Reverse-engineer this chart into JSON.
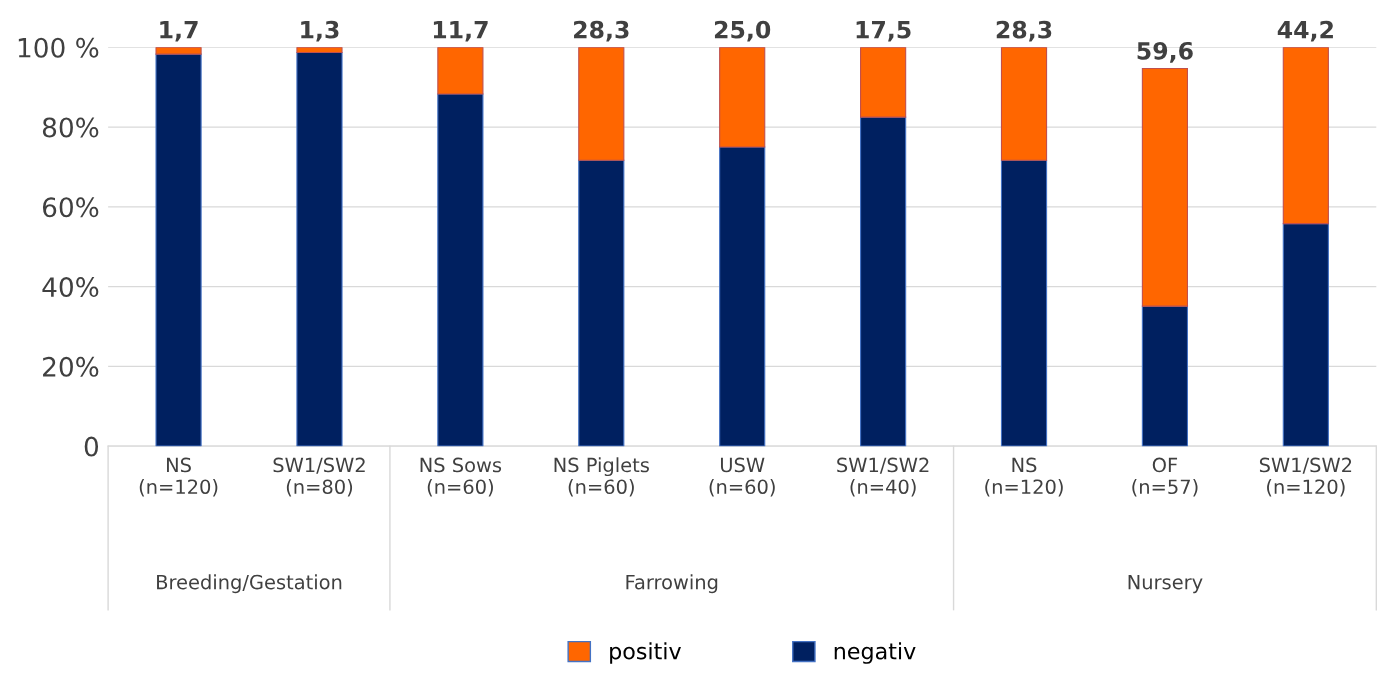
{
  "chart_data": {
    "type": "bar",
    "stacked": true,
    "categories": [
      "NS\n(n=120)",
      "SW1/SW2\n(n=80)",
      "NS Sows\n(n=60)",
      "NS Piglets\n(n=60)",
      "USW\n(n=60)",
      "SW1/SW2\n(n=40)",
      "NS\n(n=120)",
      "OF\n(n=57)",
      "SW1/SW2\n(n=120)"
    ],
    "series": [
      {
        "name": "negativ",
        "color": "#002060",
        "values": [
          98.3,
          98.7,
          88.3,
          71.7,
          75.0,
          82.5,
          71.7,
          35.1,
          55.8
        ]
      },
      {
        "name": "positiv",
        "color": "#ff6600",
        "values": [
          1.7,
          1.3,
          11.7,
          28.3,
          25.0,
          17.5,
          28.3,
          59.6,
          44.2
        ],
        "value_labels": [
          "1,7",
          "1,3",
          "11,7",
          "28,3",
          "25,0",
          "17,5",
          "28,3",
          "59,6",
          "44,2"
        ]
      }
    ],
    "ylim": [
      0,
      100
    ],
    "yticks": [
      0,
      {
        "value": 20,
        "label": "20%"
      },
      {
        "value": 40,
        "label": "40%"
      },
      {
        "value": 60,
        "label": "60%"
      },
      {
        "value": 80,
        "label": "80%"
      },
      {
        "value": 100,
        "label": "100 %"
      }
    ],
    "annotations": [
      "Breeding/Gestation",
      "Farrowing",
      "Nursery"
    ],
    "grid": "y",
    "legend": "bottom"
  }
}
